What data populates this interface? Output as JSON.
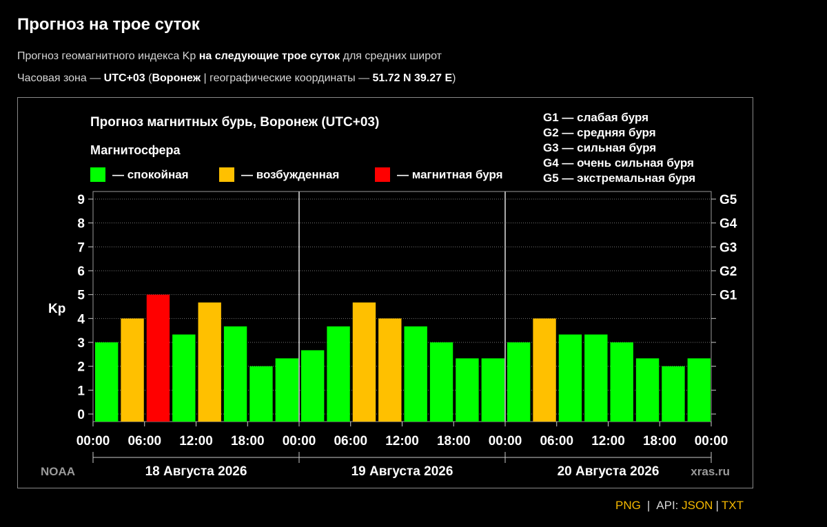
{
  "page": {
    "title": "Прогноз на трое суток",
    "subtitle_pre": "Прогноз геомагнитного индекса Kp ",
    "subtitle_bold": "на следующие трое суток",
    "subtitle_post": " для средних широт",
    "tz_pre": "Часовая зона — ",
    "tz_value": "UTC+03",
    "tz_open": " (",
    "tz_city": "Воронеж",
    "tz_mid": " | географические координаты — ",
    "tz_coords": "51.72 N 39.27 E",
    "tz_close": ")"
  },
  "footer": {
    "png": "PNG",
    "sep1": "|",
    "api_label": "API: ",
    "json": "JSON",
    "sep2": "|",
    "txt": "TXT",
    "link_color": "#f5b800"
  },
  "chart_data": {
    "type": "bar",
    "title": "Прогноз магнитных бурь, Воронеж (UTC+03)",
    "legend_title": "Магнитосфера",
    "legend": [
      {
        "label": "— спокойная",
        "color": "#00ff00"
      },
      {
        "label": "— возбужденная",
        "color": "#ffc000"
      },
      {
        "label": "— магнитная буря",
        "color": "#ff0000"
      }
    ],
    "storm_scale": [
      "G1 — слабая буря",
      "G2 — средняя буря",
      "G3 — сильная буря",
      "G4 — очень сильная буря",
      "G5 — экстремальная буря"
    ],
    "ylabel": "Kp",
    "ylim": [
      0,
      9
    ],
    "yticks": [
      "0",
      "1",
      "2",
      "3",
      "4",
      "5",
      "6",
      "7",
      "8",
      "9"
    ],
    "right_ticks": [
      {
        "label": "G1",
        "value": 5
      },
      {
        "label": "G2",
        "value": 6
      },
      {
        "label": "G3",
        "value": 7
      },
      {
        "label": "G4",
        "value": 8
      },
      {
        "label": "G5",
        "value": 9
      }
    ],
    "xtick_labels": [
      "00:00",
      "06:00",
      "12:00",
      "18:00",
      "00:00",
      "06:00",
      "12:00",
      "18:00",
      "00:00",
      "06:00",
      "12:00",
      "18:00",
      "00:00"
    ],
    "days": [
      "18 Августа 2026",
      "19 Августа 2026",
      "20 Августа 2026"
    ],
    "values": [
      3.0,
      4.0,
      5.0,
      3.33,
      4.67,
      3.67,
      2.0,
      2.33,
      2.67,
      3.67,
      4.67,
      4.0,
      3.67,
      3.0,
      2.33,
      2.33,
      3.0,
      4.0,
      3.33,
      3.33,
      3.0,
      2.33,
      2.0,
      2.33
    ],
    "colors": {
      "quiet": "#00ff00",
      "active": "#ffc000",
      "storm": "#ff0000"
    },
    "grid": true,
    "source_left": "NOAA",
    "source_right": "xras.ru"
  }
}
